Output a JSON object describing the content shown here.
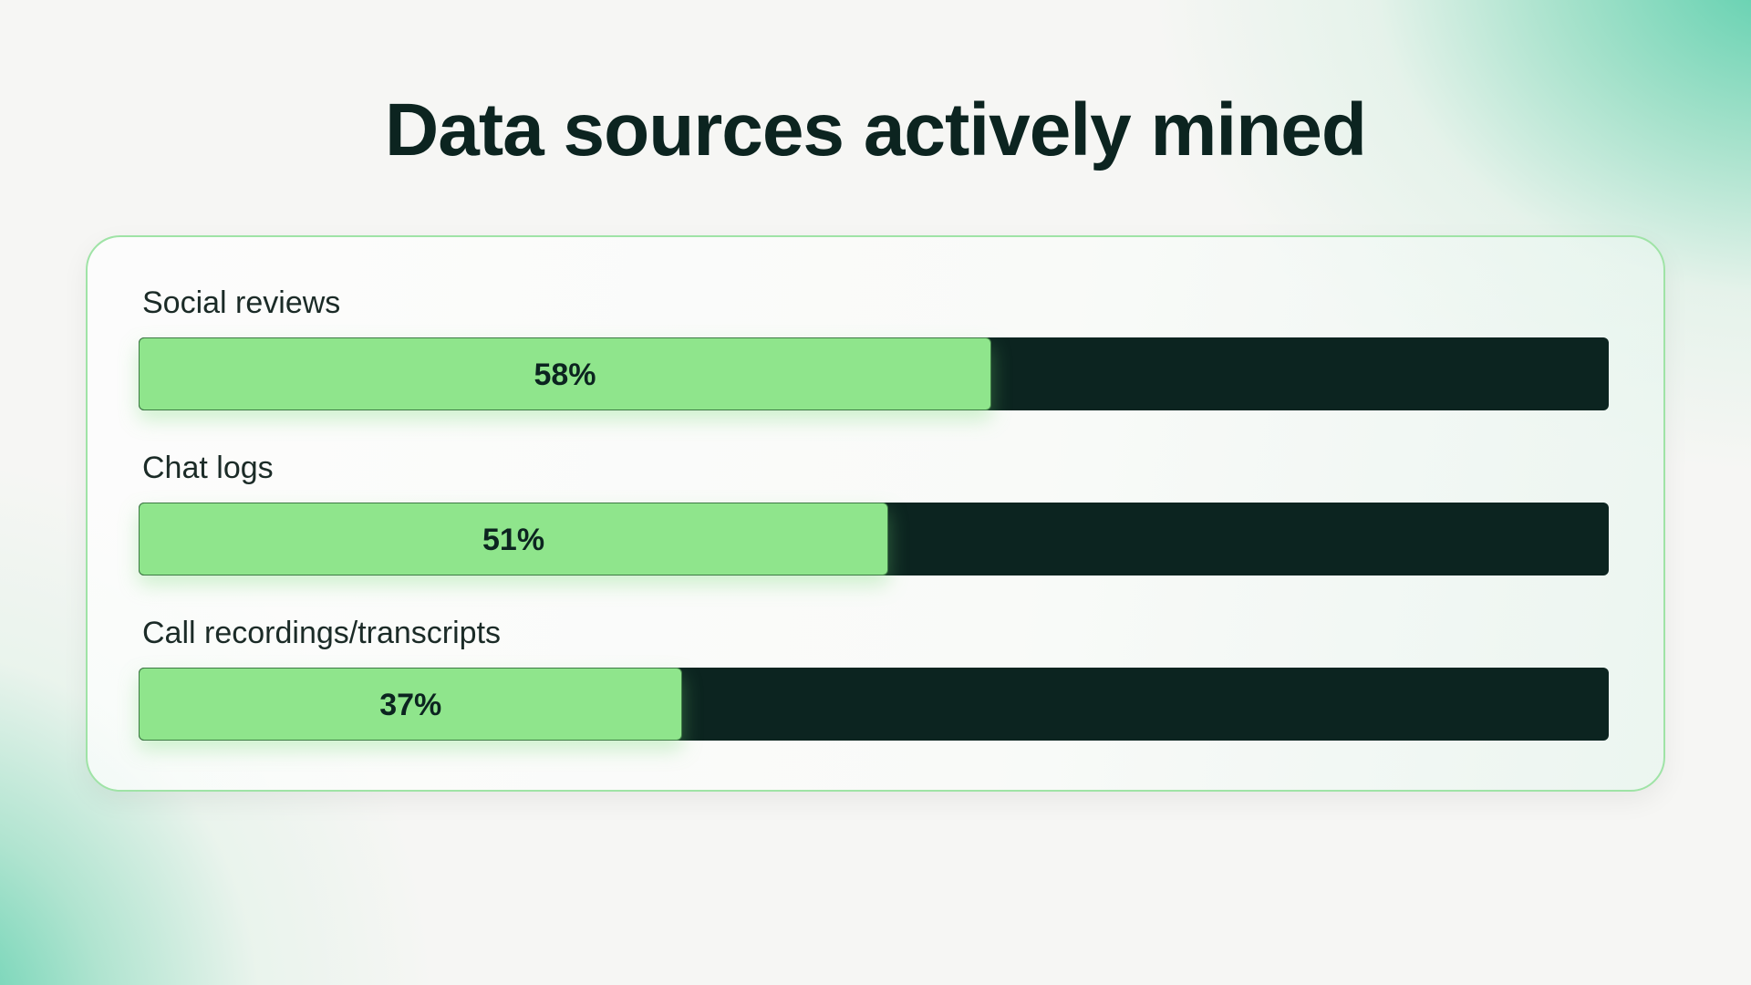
{
  "title": "Data sources actively mined",
  "colors": {
    "fill": "#8fe58c",
    "track": "#0c2420",
    "accent": "#50cca8",
    "text": "#0c2420"
  },
  "chart_data": {
    "type": "bar",
    "orientation": "horizontal",
    "title": "Data sources actively mined",
    "categories": [
      "Social reviews",
      "Chat logs",
      "Call recordings/transcripts"
    ],
    "values": [
      58,
      51,
      37
    ],
    "value_labels": [
      "58%",
      "51%",
      "37%"
    ],
    "unit": "%",
    "xlim": [
      0,
      100
    ],
    "grid": false,
    "legend": "none"
  }
}
